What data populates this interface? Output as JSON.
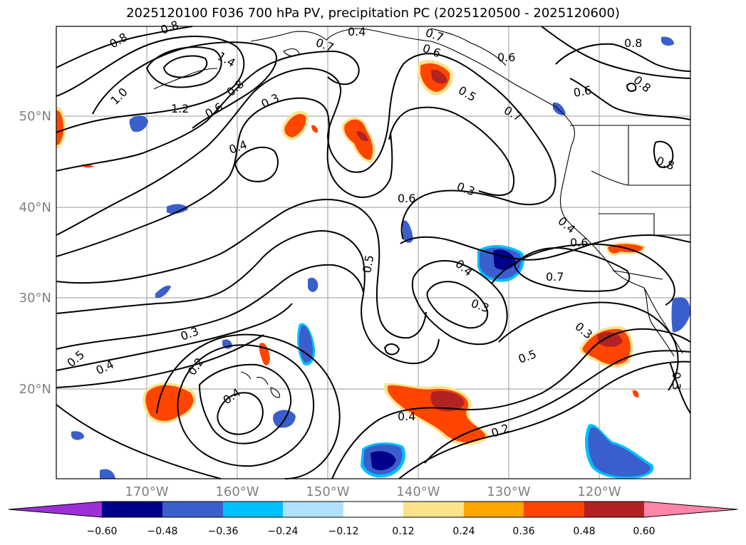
{
  "title": "2025120100 F036 700 hPa PV, precipitation PC (2025120500 - 2025120600)",
  "latitude_labels": [
    "50°N",
    "40°N",
    "30°N",
    "20°N"
  ],
  "longitude_labels": [
    "170°W",
    "160°W",
    "150°W",
    "140°W",
    "130°W",
    "120°W"
  ],
  "colorbar": {
    "tick_labels": [
      "−0.60",
      "−0.48",
      "−0.36",
      "−0.24",
      "−0.12",
      "0.12",
      "0.24",
      "0.36",
      "0.48",
      "0.60"
    ],
    "colors": [
      "#9b30d6",
      "#00008b",
      "#3a5fcd",
      "#00bfff",
      "#b0e2ff",
      "#ffffff",
      "#fce38a",
      "#ffa500",
      "#ff4500",
      "#b22222",
      "#ff85a8"
    ]
  },
  "contour_labels": [
    "0.8",
    "0.8",
    "0.8",
    "0.8",
    "0.8",
    "0.7",
    "0.7",
    "0.7",
    "0.6",
    "0.6",
    "0.6",
    "0.6",
    "0.6",
    "0.5",
    "0.5",
    "0.5",
    "0.4",
    "0.4",
    "0.4",
    "0.4",
    "0.4",
    "0.4",
    "0.3",
    "0.3",
    "0.3",
    "0.3",
    "0.3",
    "0.3",
    "0.2",
    "0.2",
    "1.0",
    "1.2",
    "1.4",
    "0.4",
    "0.8"
  ],
  "precipitation_legend_colors": {
    "positive_light": "#fce38a",
    "positive_orange": "#ff4500",
    "positive_dark": "#b22222",
    "negative_light": "#00bfff",
    "negative_mid": "#3a5fcd",
    "negative_dark": "#00008b"
  }
}
